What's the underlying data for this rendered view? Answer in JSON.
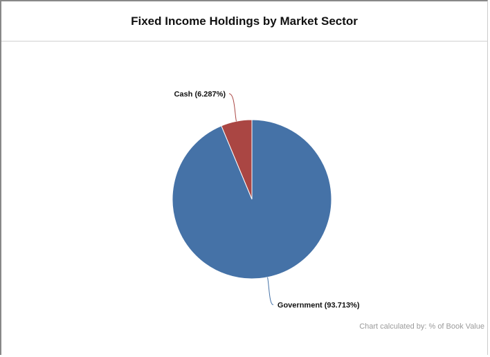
{
  "chart_data": {
    "type": "pie",
    "title": "Fixed Income Holdings by Market Sector",
    "slices": [
      {
        "label": "Cash (6.287%)",
        "name": "Cash",
        "value": 6.287,
        "color": "#aa4643"
      },
      {
        "label": "Government (93.713%)",
        "name": "Government",
        "value": 93.713,
        "color": "#4572a7"
      }
    ],
    "footnote": "Chart calculated by: % of Book Value"
  }
}
